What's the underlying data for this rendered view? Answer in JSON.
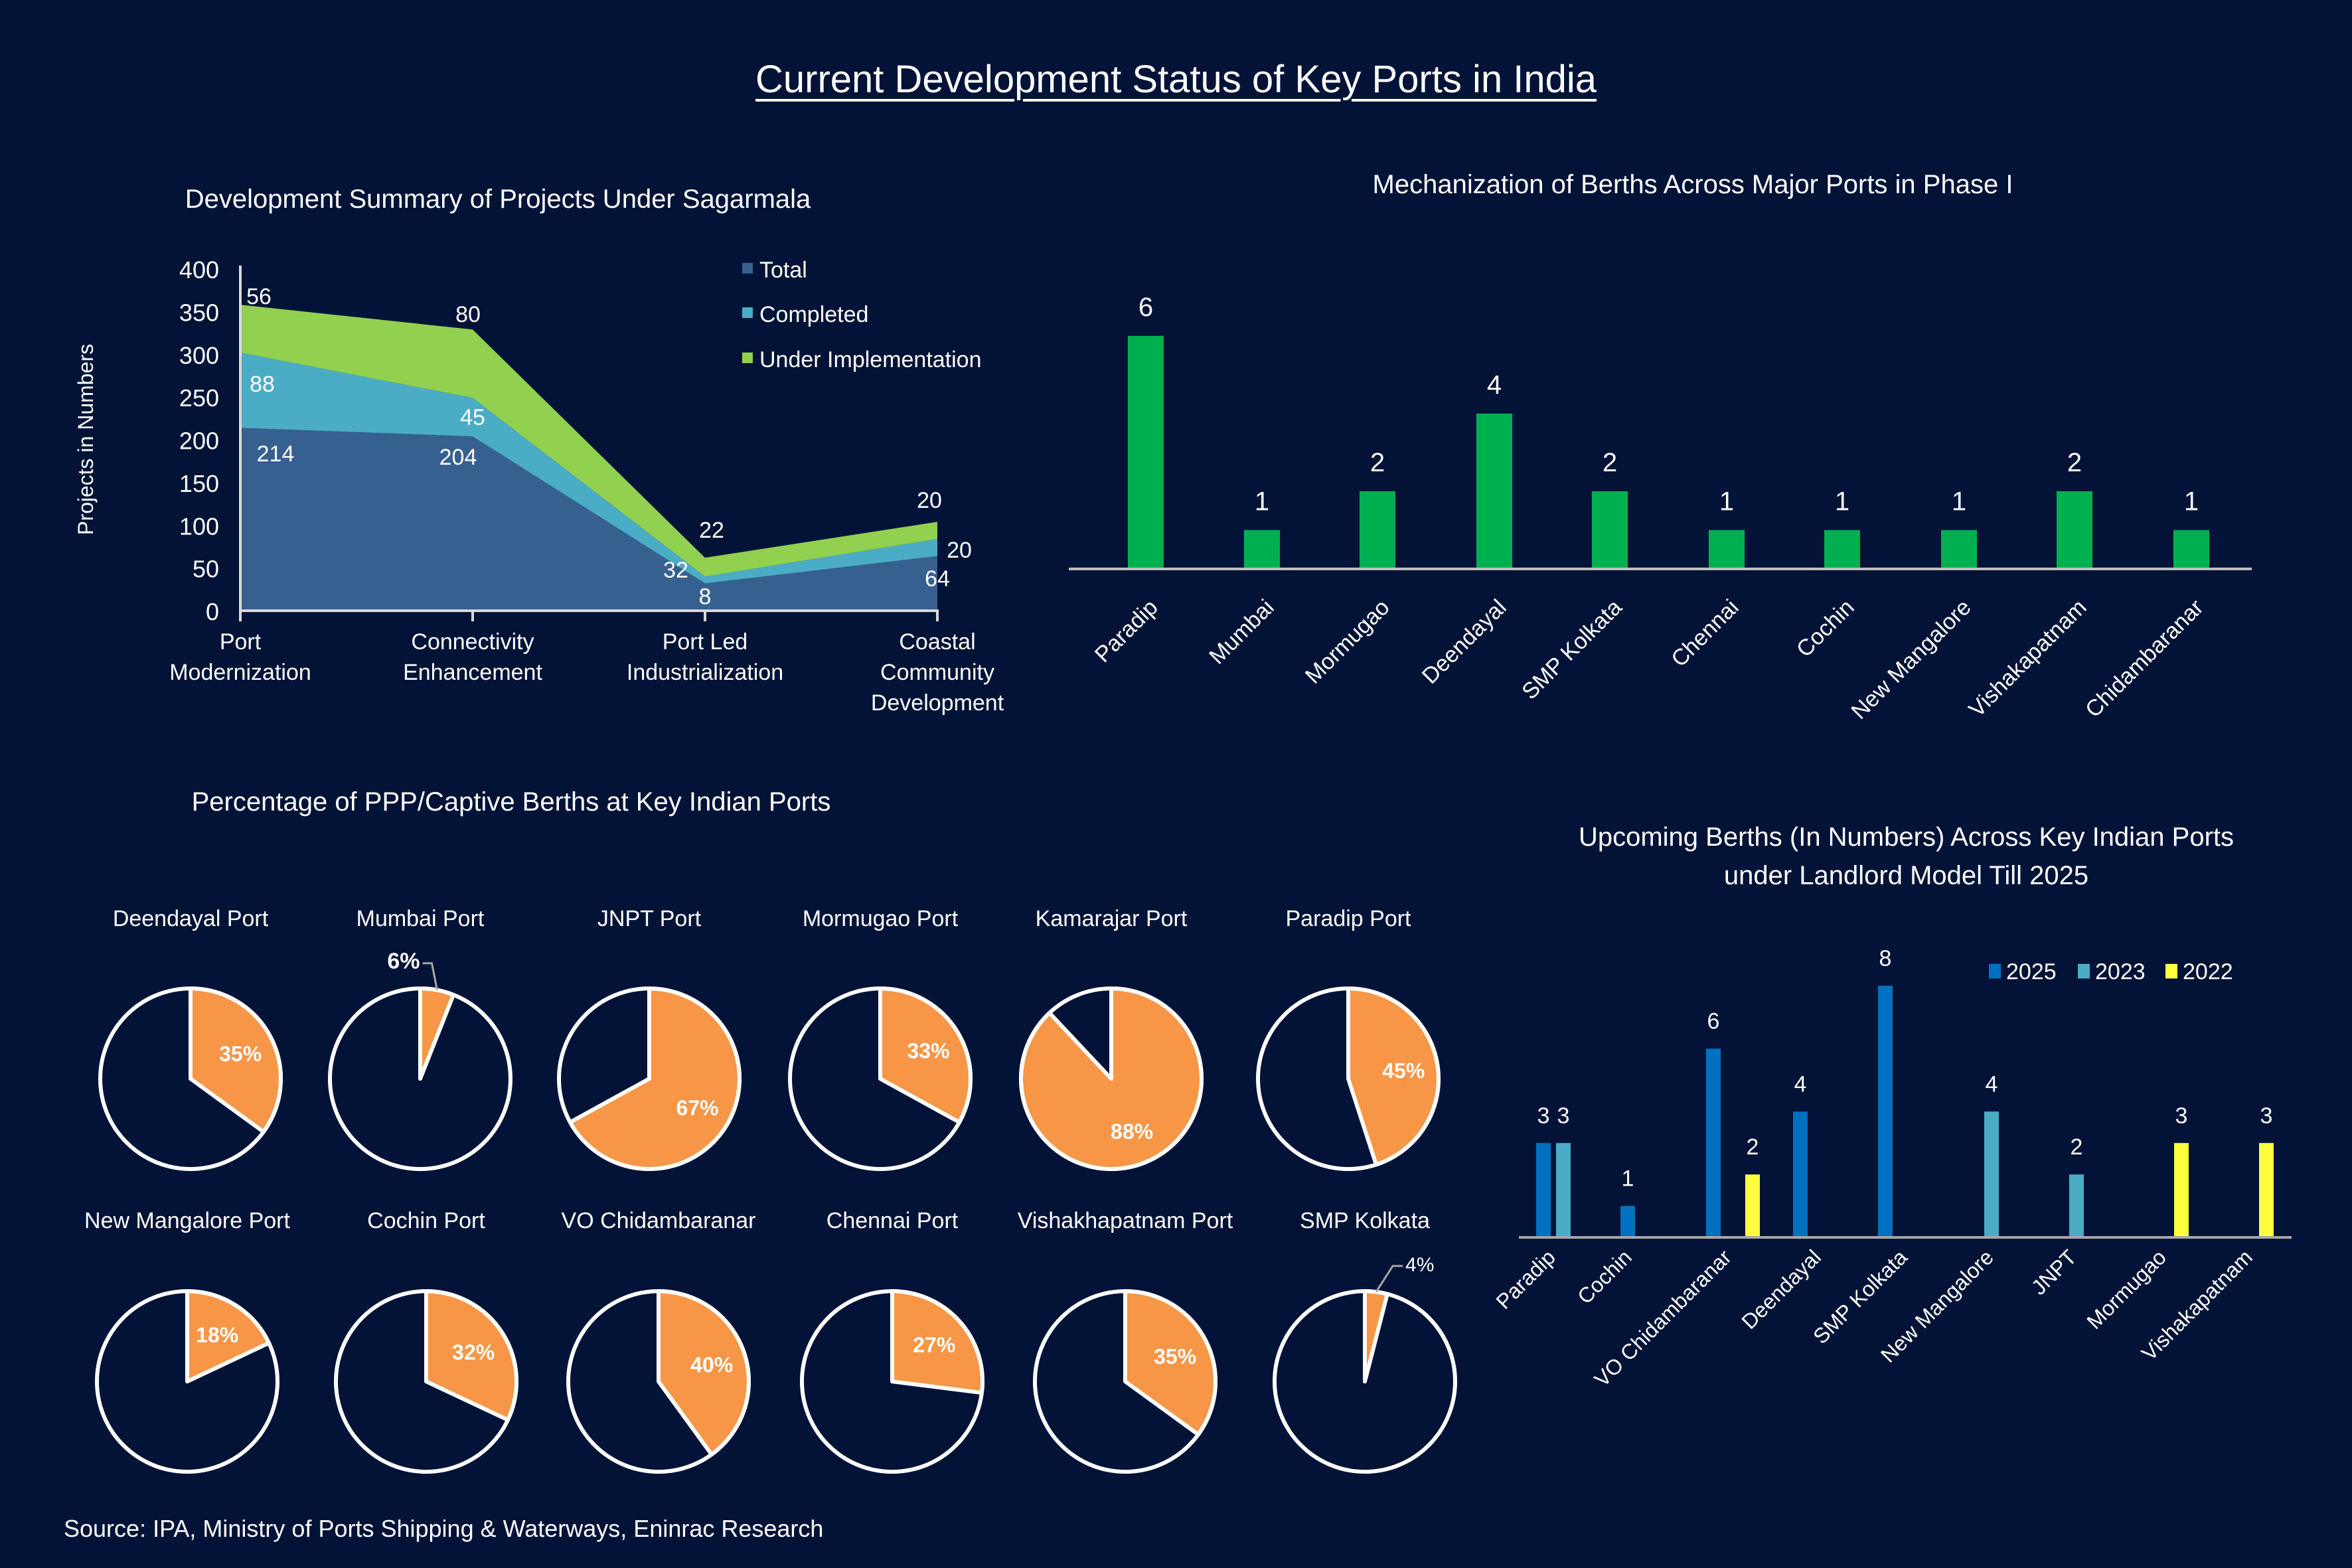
{
  "page": {
    "title": "Current Development Status of Key Ports in India",
    "source": "Source: IPA, Ministry of Ports Shipping & Waterways, Eninrac Research",
    "background": "#021337"
  },
  "colors": {
    "total": "#36608F",
    "completed": "#4BACC6",
    "under_implementation": "#92D050",
    "mechanization_bar": "#00B050",
    "pie_share": "#F79646",
    "pie_rest": "#021337",
    "y2025": "#0070C0",
    "y2023": "#4BACC6",
    "y2022": "#FFFF40"
  },
  "chart_data": [
    {
      "id": "sagarmala",
      "type": "area",
      "stacked": true,
      "title": "Development Summary of Projects Under Sagarmala",
      "xlabel": "",
      "ylabel": "Projects in Numbers",
      "ylim": [
        0,
        400
      ],
      "yticks": [
        0,
        50,
        100,
        150,
        200,
        250,
        300,
        350,
        400
      ],
      "categories": [
        "Port Modernization",
        "Connectivity Enhancement",
        "Port Led Industrialization",
        "Coastal Community Development"
      ],
      "category_lines": [
        [
          "Port",
          "Modernization"
        ],
        [
          "Connectivity",
          "Enhancement"
        ],
        [
          "Port Led",
          "Industrialization"
        ],
        [
          "Coastal",
          "Community",
          "Development"
        ]
      ],
      "series": [
        {
          "name": "Total",
          "values": [
            214,
            204,
            32,
            64
          ]
        },
        {
          "name": "Completed",
          "values": [
            88,
            45,
            8,
            20
          ]
        },
        {
          "name": "Under Implementation",
          "values": [
            56,
            80,
            22,
            20
          ]
        }
      ],
      "legend": "top-right",
      "grid": false
    },
    {
      "id": "mechanization",
      "type": "bar",
      "title": "Mechanization of Berths Across Major Ports in Phase I",
      "categories": [
        "Paradip",
        "Mumbai",
        "Mormugao",
        "Deendayal",
        "SMP Kolkata",
        "Chennai",
        "Cochin",
        "New Mangalore",
        "Vishakapatnam",
        "Chidambaranar"
      ],
      "values": [
        6,
        1,
        2,
        4,
        2,
        1,
        1,
        1,
        2,
        1
      ],
      "ylim": [
        0,
        6
      ],
      "grid": false,
      "legend": "none"
    },
    {
      "id": "ppp-pies",
      "type": "pie",
      "title": "Percentage of PPP/Captive Berths at Key Indian Ports",
      "pies": [
        {
          "name": "Deendayal Port",
          "value": 35,
          "label": "35%",
          "outside": false
        },
        {
          "name": "Mumbai Port",
          "value": 6,
          "label": "6%",
          "outside": true
        },
        {
          "name": "JNPT Port",
          "value": 67,
          "label": "67%",
          "outside": false
        },
        {
          "name": "Mormugao Port",
          "value": 33,
          "label": "33%",
          "outside": false
        },
        {
          "name": "Kamarajar Port",
          "value": 88,
          "label": "88%",
          "outside": false
        },
        {
          "name": "Paradip Port",
          "value": 45,
          "label": "45%",
          "outside": false
        },
        {
          "name": "New Mangalore Port",
          "value": 18,
          "label": "18%",
          "outside": false
        },
        {
          "name": "Cochin Port",
          "value": 32,
          "label": "32%",
          "outside": false
        },
        {
          "name": "VO Chidambaranar",
          "value": 40,
          "label": "40%",
          "outside": false
        },
        {
          "name": "Chennai Port",
          "value": 27,
          "label": "27%",
          "outside": false
        },
        {
          "name": "Vishakhapatnam Port",
          "value": 35,
          "label": "35%",
          "outside": false
        },
        {
          "name": "SMP Kolkata",
          "value": 4,
          "label": "4%",
          "outside": true
        }
      ]
    },
    {
      "id": "upcoming",
      "type": "bar",
      "title": "Upcoming Berths (In Numbers) Across Key Indian Ports under Landlord Model Till 2025",
      "title_lines": [
        "Upcoming Berths (In Numbers) Across Key Indian Ports",
        "under Landlord Model Till 2025"
      ],
      "categories": [
        "Paradip",
        "Cochin",
        "VO Chidambaranar",
        "Deendayal",
        "SMP Kolkata",
        "New Mangalore",
        "JNPT",
        "Mormugao",
        "Vishakapatnam"
      ],
      "series": [
        {
          "name": "2025",
          "values": [
            3,
            1,
            6,
            4,
            8,
            null,
            null,
            null,
            null
          ]
        },
        {
          "name": "2023",
          "values": [
            3,
            null,
            null,
            null,
            null,
            4,
            2,
            null,
            null
          ]
        },
        {
          "name": "2022",
          "values": [
            null,
            null,
            2,
            null,
            null,
            null,
            null,
            3,
            3
          ]
        }
      ],
      "ylim": [
        0,
        8
      ],
      "legend": "top-right",
      "grid": false
    }
  ]
}
